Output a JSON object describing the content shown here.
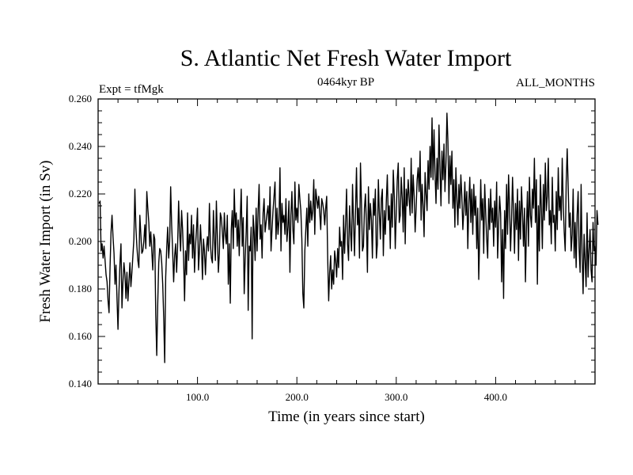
{
  "chart_data": {
    "type": "line",
    "title": "S. Atlantic Net Fresh Water Import",
    "subtitle_left": "Expt = tfMgk",
    "subtitle_center": "0464kyr BP",
    "subtitle_right": "ALL_MONTHS",
    "xlabel": "Time (in years since start)",
    "ylabel": "Fresh Water Import (in Sv)",
    "xlim": [
      0,
      500
    ],
    "ylim": [
      0.14,
      0.26
    ],
    "x_ticks": [
      100,
      200,
      300,
      400
    ],
    "x_tick_labels": [
      "100.0",
      "200.0",
      "300.0",
      "400.0"
    ],
    "y_ticks": [
      0.14,
      0.16,
      0.18,
      0.2,
      0.22,
      0.24,
      0.26
    ],
    "y_tick_labels": [
      "0.140",
      "0.160",
      "0.180",
      "0.200",
      "0.220",
      "0.240",
      "0.260"
    ],
    "grid": false,
    "line_color": "#000000",
    "series": [
      {
        "x_start": 1,
        "x_step": 1,
        "values": [
          0.216,
          0.217,
          0.196,
          0.199,
          0.193,
          0.198,
          0.192,
          0.186,
          0.183,
          0.175,
          0.17,
          0.189,
          0.204,
          0.211,
          0.202,
          0.195,
          0.182,
          0.19,
          0.176,
          0.163,
          0.179,
          0.191,
          0.199,
          0.172,
          0.183,
          0.191,
          0.186,
          0.176,
          0.187,
          0.175,
          0.183,
          0.191,
          0.181,
          0.187,
          0.194,
          0.201,
          0.222,
          0.206,
          0.198,
          0.192,
          0.189,
          0.211,
          0.203,
          0.195,
          0.196,
          0.2,
          0.207,
          0.197,
          0.221,
          0.214,
          0.208,
          0.198,
          0.204,
          0.196,
          0.188,
          0.203,
          0.201,
          0.169,
          0.152,
          0.174,
          0.191,
          0.197,
          0.196,
          0.191,
          0.182,
          0.168,
          0.149,
          0.185,
          0.197,
          0.206,
          0.193,
          0.2,
          0.223,
          0.207,
          0.196,
          0.183,
          0.194,
          0.199,
          0.187,
          0.198,
          0.217,
          0.204,
          0.196,
          0.213,
          0.205,
          0.193,
          0.175,
          0.196,
          0.186,
          0.212,
          0.192,
          0.203,
          0.199,
          0.211,
          0.193,
          0.207,
          0.187,
          0.198,
          0.205,
          0.214,
          0.188,
          0.196,
          0.207,
          0.198,
          0.184,
          0.201,
          0.196,
          0.186,
          0.197,
          0.202,
          0.196,
          0.216,
          0.199,
          0.193,
          0.191,
          0.213,
          0.201,
          0.192,
          0.217,
          0.202,
          0.187,
          0.195,
          0.212,
          0.21,
          0.204,
          0.197,
          0.212,
          0.203,
          0.199,
          0.211,
          0.182,
          0.199,
          0.174,
          0.205,
          0.213,
          0.197,
          0.222,
          0.206,
          0.212,
          0.198,
          0.209,
          0.194,
          0.209,
          0.222,
          0.198,
          0.21,
          0.178,
          0.193,
          0.204,
          0.219,
          0.171,
          0.198,
          0.196,
          0.206,
          0.159,
          0.211,
          0.204,
          0.192,
          0.214,
          0.196,
          0.213,
          0.224,
          0.201,
          0.207,
          0.193,
          0.212,
          0.218,
          0.204,
          0.208,
          0.212,
          0.215,
          0.205,
          0.223,
          0.196,
          0.205,
          0.213,
          0.219,
          0.225,
          0.201,
          0.214,
          0.203,
          0.209,
          0.231,
          0.196,
          0.216,
          0.208,
          0.211,
          0.203,
          0.218,
          0.2,
          0.206,
          0.217,
          0.187,
          0.211,
          0.221,
          0.205,
          0.199,
          0.225,
          0.209,
          0.214,
          0.208,
          0.224,
          0.218,
          0.213,
          0.201,
          0.178,
          0.172,
          0.196,
          0.205,
          0.214,
          0.198,
          0.22,
          0.208,
          0.217,
          0.209,
          0.213,
          0.226,
          0.203,
          0.222,
          0.218,
          0.214,
          0.219,
          0.212,
          0.205,
          0.218,
          0.216,
          0.213,
          0.207,
          0.214,
          0.219,
          0.193,
          0.175,
          0.187,
          0.194,
          0.18,
          0.188,
          0.182,
          0.196,
          0.192,
          0.185,
          0.197,
          0.189,
          0.206,
          0.198,
          0.2,
          0.184,
          0.211,
          0.195,
          0.207,
          0.222,
          0.199,
          0.192,
          0.215,
          0.204,
          0.196,
          0.224,
          0.208,
          0.194,
          0.213,
          0.231,
          0.207,
          0.214,
          0.193,
          0.233,
          0.216,
          0.196,
          0.198,
          0.214,
          0.22,
          0.207,
          0.187,
          0.223,
          0.205,
          0.216,
          0.209,
          0.193,
          0.218,
          0.211,
          0.222,
          0.193,
          0.199,
          0.226,
          0.212,
          0.201,
          0.218,
          0.222,
          0.194,
          0.213,
          0.203,
          0.217,
          0.228,
          0.209,
          0.215,
          0.197,
          0.22,
          0.206,
          0.23,
          0.219,
          0.197,
          0.212,
          0.226,
          0.233,
          0.208,
          0.211,
          0.227,
          0.218,
          0.204,
          0.231,
          0.199,
          0.222,
          0.215,
          0.226,
          0.218,
          0.211,
          0.235,
          0.212,
          0.228,
          0.219,
          0.204,
          0.214,
          0.226,
          0.231,
          0.221,
          0.238,
          0.209,
          0.224,
          0.215,
          0.202,
          0.229,
          0.22,
          0.213,
          0.234,
          0.222,
          0.24,
          0.227,
          0.252,
          0.226,
          0.247,
          0.229,
          0.216,
          0.235,
          0.222,
          0.249,
          0.231,
          0.215,
          0.238,
          0.226,
          0.241,
          0.221,
          0.233,
          0.254,
          0.242,
          0.216,
          0.236,
          0.224,
          0.238,
          0.214,
          0.226,
          0.206,
          0.231,
          0.218,
          0.207,
          0.224,
          0.214,
          0.228,
          0.219,
          0.205,
          0.213,
          0.225,
          0.211,
          0.221,
          0.197,
          0.216,
          0.227,
          0.208,
          0.222,
          0.203,
          0.224,
          0.211,
          0.219,
          0.197,
          0.214,
          0.184,
          0.203,
          0.226,
          0.209,
          0.218,
          0.195,
          0.224,
          0.212,
          0.201,
          0.193,
          0.218,
          0.205,
          0.222,
          0.208,
          0.214,
          0.198,
          0.217,
          0.206,
          0.225,
          0.193,
          0.207,
          0.219,
          0.212,
          0.183,
          0.205,
          0.176,
          0.213,
          0.197,
          0.224,
          0.203,
          0.228,
          0.215,
          0.196,
          0.209,
          0.227,
          0.213,
          0.195,
          0.216,
          0.205,
          0.222,
          0.192,
          0.217,
          0.201,
          0.223,
          0.212,
          0.198,
          0.214,
          0.183,
          0.206,
          0.221,
          0.198,
          0.227,
          0.211,
          0.206,
          0.222,
          0.214,
          0.235,
          0.208,
          0.226,
          0.182,
          0.215,
          0.196,
          0.228,
          0.214,
          0.197,
          0.224,
          0.209,
          0.233,
          0.213,
          0.219,
          0.235,
          0.207,
          0.213,
          0.199,
          0.227,
          0.208,
          0.211,
          0.196,
          0.221,
          0.205,
          0.231,
          0.213,
          0.219,
          0.209,
          0.235,
          0.216,
          0.204,
          0.196,
          0.225,
          0.239,
          0.223,
          0.206,
          0.212,
          0.196,
          0.203,
          0.222,
          0.193,
          0.208,
          0.189,
          0.211,
          0.221,
          0.197,
          0.187,
          0.224,
          0.195,
          0.178,
          0.203,
          0.192,
          0.181,
          0.212,
          0.185,
          0.196,
          0.205,
          0.188,
          0.183,
          0.208,
          0.196,
          0.198,
          0.19,
          0.213,
          0.207
        ]
      }
    ]
  }
}
